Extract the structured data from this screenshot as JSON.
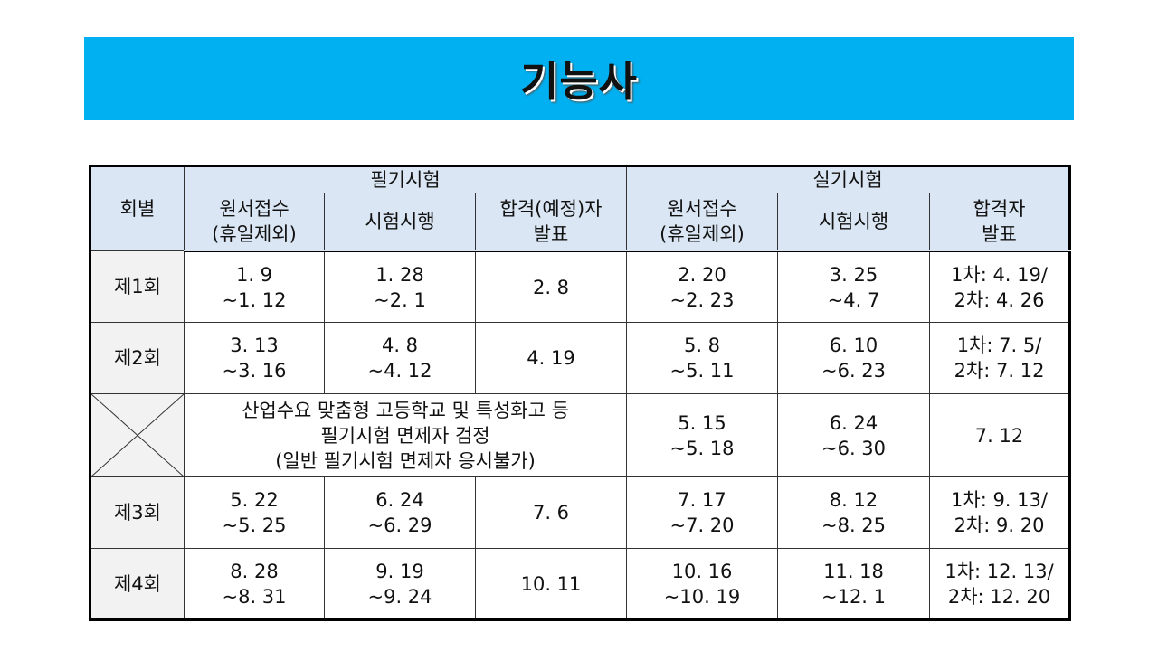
{
  "title": "기능사",
  "table": {
    "col_round": "회별",
    "group_written": "필기시험",
    "group_practical": "실기시험",
    "written_cols": [
      "원서접수\n(휴일제외)",
      "시험시행",
      "합격(예정)자\n발표"
    ],
    "practical_cols": [
      "원서접수\n(휴일제외)",
      "시험시행",
      "합격자\n발표"
    ],
    "rows": [
      {
        "round": "제1회",
        "w_apply": "1. 9\n~1. 12",
        "w_exam": "1. 28\n~2. 1",
        "w_result": "2. 8",
        "p_apply": "2. 20\n~2. 23",
        "p_exam": "3. 25\n~4. 7",
        "p_result": "1차: 4. 19/\n2차: 4. 26"
      },
      {
        "round": "제2회",
        "w_apply": "3. 13\n~3. 16",
        "w_exam": "4. 8\n~4. 12",
        "w_result": "4. 19",
        "p_apply": "5. 8\n~5. 11",
        "p_exam": "6. 10\n~6. 23",
        "p_result": "1차: 7. 5/\n2차: 7. 12"
      },
      {
        "round": "",
        "w_note": "산업수요 맞춤형 고등학교 및 특성화고 등\n필기시험 면제자 검정\n(일반 필기시험 면제자 응시불가)",
        "p_apply": "5. 15\n~5. 18",
        "p_exam": "6. 24\n~6. 30",
        "p_result": "7. 12"
      },
      {
        "round": "제3회",
        "w_apply": "5. 22\n~5. 25",
        "w_exam": "6. 24\n~6. 29",
        "w_result": "7. 6",
        "p_apply": "7. 17\n~7. 20",
        "p_exam": "8. 12\n~8. 25",
        "p_result": "1차: 9. 13/\n2차: 9. 20"
      },
      {
        "round": "제4회",
        "w_apply": "8. 28\n~8. 31",
        "w_exam": "9. 19\n~9. 24",
        "w_result": "10. 11",
        "p_apply": "10. 16\n~10. 19",
        "p_exam": "11. 18\n~12. 1",
        "p_result": "1차: 12. 13/\n2차: 12. 20"
      }
    ]
  }
}
